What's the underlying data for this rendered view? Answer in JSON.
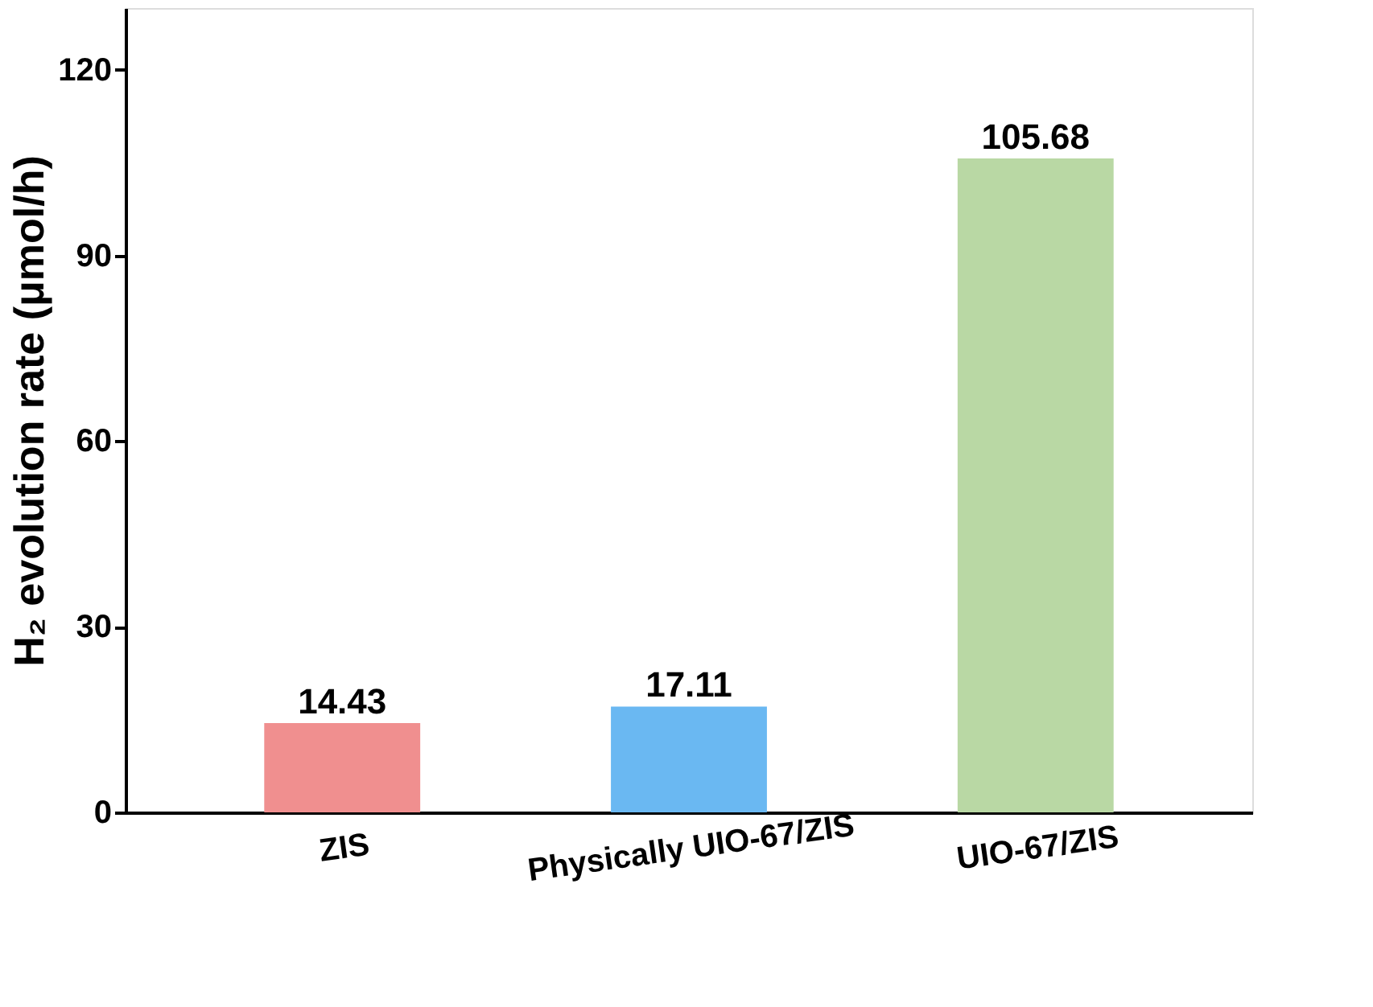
{
  "chart_data": {
    "type": "bar",
    "ylabel": "H₂ evolution rate (μmol/h)",
    "categories": [
      "ZIS",
      "Physically  UIO-67/ZIS",
      "UIO-67/ZIS"
    ],
    "values": [
      14.43,
      17.11,
      105.68
    ],
    "colors": [
      "#f08f8f",
      "#6ab8f2",
      "#b9d8a4"
    ],
    "ylim": [
      0,
      130
    ],
    "yticks": [
      0,
      30,
      60,
      90,
      120
    ],
    "grid": false,
    "data_labels": true
  }
}
